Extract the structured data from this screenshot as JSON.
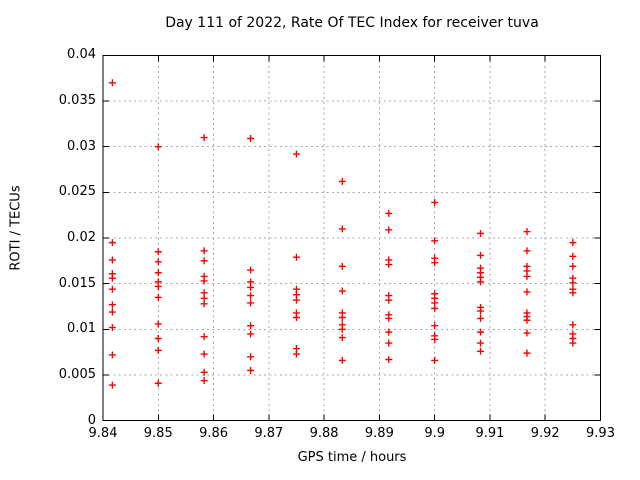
{
  "window": {
    "background": "#ffffff"
  },
  "chart_data": {
    "type": "scatter",
    "title": "Day 111 of 2022, Rate Of TEC Index for receiver tuva",
    "xlabel": "GPS time / hours",
    "ylabel": "ROTI / TECUs",
    "xlim": [
      9.84,
      9.93
    ],
    "ylim": [
      0,
      0.04
    ],
    "grid": true,
    "legend": "none",
    "marker": {
      "shape": "plus",
      "color": "#ff0000",
      "size": 7
    },
    "colors": {
      "axis": "#000000",
      "grid": "#a9a9a9",
      "background": "#ffffff",
      "text": "#000000"
    },
    "xticks": {
      "values": [
        9.84,
        9.85,
        9.86,
        9.87,
        9.88,
        9.89,
        9.9,
        9.91,
        9.92,
        9.93
      ],
      "labels": [
        "9.84",
        "9.85",
        "9.86",
        "9.87",
        "9.88",
        "9.89",
        "9.9",
        "9.91",
        "9.92",
        "9.93"
      ]
    },
    "yticks": {
      "values": [
        0,
        0.005,
        0.01,
        0.015,
        0.02,
        0.025,
        0.03,
        0.035,
        0.04
      ],
      "labels": [
        "0",
        "0.005",
        "0.01",
        "0.015",
        "0.02",
        "0.025",
        "0.03",
        "0.035",
        "0.04"
      ]
    },
    "series": [
      {
        "name": "ROTI",
        "columns": [
          {
            "x": 9.8417,
            "y": [
              0.037,
              0.0195,
              0.0176,
              0.0161,
              0.0156,
              0.0144,
              0.0127,
              0.0119,
              0.0102,
              0.0072,
              0.0039
            ]
          },
          {
            "x": 9.85,
            "y": [
              0.03,
              0.0185,
              0.0174,
              0.0162,
              0.0152,
              0.0147,
              0.0135,
              0.0106,
              0.009,
              0.0077,
              0.0041
            ]
          },
          {
            "x": 9.8583,
            "y": [
              0.031,
              0.0186,
              0.0175,
              0.0158,
              0.0153,
              0.014,
              0.0134,
              0.0128,
              0.0092,
              0.0073,
              0.0053,
              0.0044
            ]
          },
          {
            "x": 9.8667,
            "y": [
              0.0309,
              0.0165,
              0.0152,
              0.0146,
              0.0137,
              0.0129,
              0.0104,
              0.0095,
              0.007,
              0.0055
            ]
          },
          {
            "x": 9.875,
            "y": [
              0.0292,
              0.0179,
              0.0144,
              0.0138,
              0.0132,
              0.0118,
              0.0113,
              0.0079,
              0.0073
            ]
          },
          {
            "x": 9.8833,
            "y": [
              0.0262,
              0.021,
              0.0169,
              0.0142,
              0.0118,
              0.0113,
              0.0105,
              0.01,
              0.0091,
              0.0066
            ]
          },
          {
            "x": 9.8917,
            "y": [
              0.0227,
              0.0209,
              0.0176,
              0.0171,
              0.0137,
              0.0132,
              0.0116,
              0.0112,
              0.0097,
              0.0085,
              0.0067
            ]
          },
          {
            "x": 9.9,
            "y": [
              0.0239,
              0.0197,
              0.0178,
              0.0173,
              0.0139,
              0.0134,
              0.0129,
              0.0123,
              0.0104,
              0.0093,
              0.0089,
              0.0066
            ]
          },
          {
            "x": 9.9083,
            "y": [
              0.0205,
              0.0181,
              0.0167,
              0.0162,
              0.0157,
              0.0152,
              0.0124,
              0.012,
              0.0112,
              0.0097,
              0.0085,
              0.0076
            ]
          },
          {
            "x": 9.9167,
            "y": [
              0.0207,
              0.0186,
              0.0169,
              0.0164,
              0.0158,
              0.0141,
              0.0118,
              0.0114,
              0.011,
              0.0096,
              0.0074
            ]
          },
          {
            "x": 9.925,
            "y": [
              0.0195,
              0.018,
              0.0169,
              0.0156,
              0.0151,
              0.0144,
              0.014,
              0.0105,
              0.0095,
              0.009,
              0.0085
            ]
          }
        ]
      }
    ]
  }
}
